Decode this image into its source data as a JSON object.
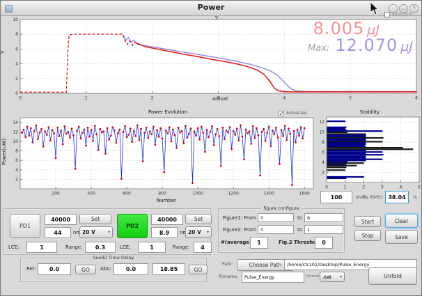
{
  "window": {
    "title": "Power",
    "min_glyph": "–",
    "max_glyph": "□",
    "close_glyph": "✕"
  },
  "icons": {
    "chevron": "▾",
    "check": "✓"
  },
  "top_plot": {
    "afterglow_label": "Afterglow",
    "current_value": "8.005",
    "current_unit": "μJ",
    "max_label": "Max:",
    "max_value": "12.070",
    "max_unit": "μJ"
  },
  "evolution_ui": {
    "autoscale_label": "Autoscale"
  },
  "stability_ui": {
    "shots_value": "100",
    "shots_label": "shots",
    "rms_label": "flu.(RMS):",
    "rms_value": "38.04",
    "percent_label": "%"
  },
  "pd1": {
    "button": "PD1",
    "counts": "40000",
    "wavelength": "44",
    "unit": "nm",
    "set": "Set",
    "voltage": "20 V",
    "lce_label": "LCE:",
    "lce": "1",
    "range_label": "Range:",
    "range": "0.3"
  },
  "pd2": {
    "button": "PD2",
    "counts": "40000",
    "wavelength": "8.9",
    "unit": "nm",
    "set": "Set",
    "voltage": "20 V",
    "lce_label": "LCE:",
    "lce": "1",
    "range_label": "Range:",
    "range": "4"
  },
  "seed_delay": {
    "title": "Seed2 Time Delay",
    "rel_label": "Rel:",
    "rel_value": "0.0",
    "go1": "GO",
    "abs_label": "Abs:",
    "abs_value": "0.0",
    "abs_target": "18.85",
    "go2": "GO"
  },
  "figure_configure": {
    "title": "figure configure",
    "row1_label": "Figure1: From",
    "row1_from": "0",
    "row1_to_label": "to",
    "row1_to": "6",
    "row2_label": "Figure2: From",
    "row2_from": "0",
    "row2_to_label": "to",
    "row2_to": "1",
    "avg_label": "#(average):",
    "avg_value": "1",
    "thresh_label": "Fig.2 Threshold:",
    "thresh_value": "0"
  },
  "actions": {
    "start": "Start",
    "stop": "Stop",
    "clear": "Clear",
    "save": "Save"
  },
  "path_row": {
    "label": "Path:",
    "choose_button": "Choose Path",
    "value": "/home/ctr101/Desktop/Pulse_Energy"
  },
  "file_row": {
    "label": "filename:",
    "value": "Pulse_Energy",
    "format_label": "format",
    "format_value": ".txt",
    "unfold": "Unfold"
  },
  "chart_data": [
    {
      "id": "energy",
      "type": "line",
      "title": "Y",
      "xlabel": "arrival",
      "ylabel": "V",
      "xlim": [
        0,
        6
      ],
      "ylim": [
        0,
        10
      ],
      "x_ticks": [
        0,
        1,
        2,
        3,
        4,
        5,
        6
      ],
      "y_ticks": [
        0,
        2,
        4,
        6,
        8,
        10
      ],
      "grid": true,
      "legend": "none",
      "series": [
        {
          "name": "max-energy-blue",
          "color": "#8a8ae6",
          "dash": false,
          "width": 1.4,
          "points": [
            [
              1.56,
              7.9
            ],
            [
              1.6,
              7.2
            ],
            [
              1.64,
              7.55
            ],
            [
              1.68,
              6.9
            ],
            [
              1.72,
              7.2
            ],
            [
              1.78,
              6.6
            ],
            [
              1.9,
              6.45
            ],
            [
              2.1,
              6.15
            ],
            [
              2.3,
              5.85
            ],
            [
              2.5,
              5.55
            ],
            [
              2.7,
              5.25
            ],
            [
              2.9,
              4.95
            ],
            [
              3.1,
              4.65
            ],
            [
              3.3,
              4.3
            ],
            [
              3.5,
              3.9
            ],
            [
              3.65,
              3.5
            ],
            [
              3.8,
              3.0
            ],
            [
              3.9,
              2.4
            ],
            [
              4.0,
              1.5
            ],
            [
              4.1,
              0.6
            ],
            [
              4.2,
              0.3
            ],
            [
              4.35,
              0.25
            ],
            [
              6,
              0.25
            ]
          ]
        },
        {
          "name": "seed-dashed-red",
          "color": "#e81010",
          "dash": true,
          "width": 1.3,
          "points": [
            [
              0,
              0.15
            ],
            [
              0.7,
              0.15
            ],
            [
              0.72,
              5.5
            ],
            [
              0.74,
              7.9
            ],
            [
              0.8,
              8.02
            ],
            [
              1.55,
              8.02
            ],
            [
              1.58,
              7.3
            ],
            [
              1.62,
              6.6
            ],
            [
              1.66,
              7.1
            ],
            [
              1.7,
              6.5
            ],
            [
              1.74,
              6.9
            ]
          ]
        },
        {
          "name": "energy-red",
          "color": "#e81010",
          "dash": false,
          "width": 1.5,
          "points": [
            [
              1.74,
              6.9
            ],
            [
              1.9,
              6.3
            ],
            [
              2.1,
              5.95
            ],
            [
              2.3,
              5.6
            ],
            [
              2.5,
              5.25
            ],
            [
              2.7,
              4.95
            ],
            [
              2.9,
              4.6
            ],
            [
              3.1,
              4.3
            ],
            [
              3.3,
              3.95
            ],
            [
              3.45,
              3.6
            ],
            [
              3.6,
              3.1
            ],
            [
              3.7,
              2.5
            ],
            [
              3.78,
              1.6
            ],
            [
              3.85,
              0.7
            ],
            [
              3.92,
              0.3
            ],
            [
              4.05,
              0.2
            ],
            [
              6,
              0.2
            ]
          ]
        }
      ]
    },
    {
      "id": "evolution",
      "type": "line",
      "title": "Power Evolution",
      "xlabel": "Number",
      "ylabel": "Power[uW]",
      "xlim": [
        0,
        1650
      ],
      "ylim": [
        0,
        15
      ],
      "x_ticks": [
        200,
        400,
        600,
        800,
        1000,
        1200,
        1400,
        1600
      ],
      "y_ticks": [
        2,
        4,
        6,
        8,
        10,
        12,
        14
      ],
      "grid": true,
      "x_step": 10,
      "line_color": "#2230cc",
      "marker_color": "#cc1111",
      "values": [
        11.8,
        12.5,
        10.9,
        13.1,
        11.2,
        12.8,
        9.8,
        12.2,
        13.4,
        10.5,
        11.9,
        12.6,
        8.9,
        12.1,
        11.4,
        13.0,
        10.2,
        12.4,
        11.7,
        6.5,
        12.9,
        11.1,
        12.3,
        9.4,
        13.2,
        11.6,
        12.0,
        10.8,
        12.7,
        11.3,
        4.2,
        12.2,
        13.1,
        10.6,
        11.8,
        12.5,
        9.1,
        12.9,
        11.0,
        12.4,
        10.1,
        13.3,
        11.5,
        8.2,
        12.6,
        11.9,
        12.1,
        7.4,
        12.8,
        10.4,
        11.2,
        13.0,
        12.3,
        9.7,
        11.7,
        12.5,
        2.1,
        12.0,
        13.2,
        10.9,
        11.4,
        12.7,
        9.9,
        12.2,
        11.1,
        13.4,
        10.3,
        12.6,
        5.8,
        11.8,
        12.9,
        10.7,
        12.1,
        11.5,
        13.1,
        9.3,
        12.4,
        11.0,
        12.8,
        10.6,
        3.5,
        12.3,
        11.7,
        13.0,
        10.0,
        12.5,
        11.3,
        8.6,
        12.9,
        11.9,
        12.2,
        9.6,
        13.3,
        10.8,
        11.6,
        12.7,
        1.2,
        12.1,
        11.2,
        12.8,
        10.4,
        13.1,
        11.8,
        7.8,
        12.4,
        10.9,
        12.0,
        13.2,
        9.2,
        11.5,
        12.6,
        11.1,
        4.8,
        12.9,
        10.5,
        12.3,
        11.9,
        13.0,
        8.4,
        12.2,
        11.4,
        12.7,
        10.2,
        13.4,
        11.0,
        6.2,
        12.5,
        11.7,
        12.1,
        9.5,
        13.2,
        10.7,
        12.8,
        11.3,
        2.8,
        12.0,
        12.6,
        10.1,
        11.8,
        13.1,
        9.0,
        12.3,
        11.5,
        12.9,
        10.8,
        5.2,
        12.4,
        11.1,
        13.3,
        10.3,
        12.7,
        11.6,
        0.8,
        12.2,
        9.8,
        12.5,
        11.2,
        13.0,
        10.6,
        12.8
      ]
    },
    {
      "id": "stability",
      "type": "barh",
      "title": "Stability",
      "xlabel": "",
      "ylabel": "",
      "xlim": [
        0,
        5
      ],
      "ylim": [
        0,
        13
      ],
      "x_ticks": [
        0,
        1,
        2,
        3,
        4,
        5
      ],
      "y_ticks": [
        2,
        4,
        6,
        8,
        10,
        12
      ],
      "grid": true,
      "colors": {
        "n": "#00008b",
        "k": "#1a1a1a"
      },
      "bars": [
        [
          12.15,
          1.0,
          "n"
        ],
        [
          10.95,
          1.05,
          "n"
        ],
        [
          10.7,
          1.0,
          "n"
        ],
        [
          10.45,
          1.05,
          "n"
        ],
        [
          10.2,
          3.0,
          "n"
        ],
        [
          9.95,
          1.1,
          "k"
        ],
        [
          9.6,
          2.1,
          "k"
        ],
        [
          9.35,
          2.1,
          "n"
        ],
        [
          9.1,
          2.1,
          "n"
        ],
        [
          8.85,
          3.05,
          "k"
        ],
        [
          8.6,
          2.1,
          "n"
        ],
        [
          8.35,
          2.1,
          "n"
        ],
        [
          8.1,
          3.0,
          "k"
        ],
        [
          7.85,
          2.1,
          "n"
        ],
        [
          7.6,
          2.1,
          "n"
        ],
        [
          7.35,
          2.05,
          "n"
        ],
        [
          7.1,
          2.1,
          "n"
        ],
        [
          6.9,
          4.1,
          "k"
        ],
        [
          6.6,
          4.65,
          "k"
        ],
        [
          6.35,
          2.1,
          "n"
        ],
        [
          6.05,
          3.0,
          "n"
        ],
        [
          5.8,
          2.1,
          "n"
        ],
        [
          5.5,
          3.05,
          "n"
        ],
        [
          5.2,
          2.1,
          "n"
        ],
        [
          4.9,
          2.1,
          "n"
        ],
        [
          4.6,
          3.0,
          "n"
        ],
        [
          4.35,
          2.1,
          "n"
        ],
        [
          4.1,
          1.1,
          "n"
        ],
        [
          3.85,
          2.0,
          "k"
        ],
        [
          3.6,
          1.05,
          "n"
        ],
        [
          3.35,
          1.6,
          "k"
        ],
        [
          3.0,
          1.05,
          "k"
        ],
        [
          2.45,
          1.0,
          "k"
        ],
        [
          1.1,
          2.0,
          "n"
        ],
        [
          0.85,
          1.05,
          "n"
        ]
      ]
    }
  ]
}
